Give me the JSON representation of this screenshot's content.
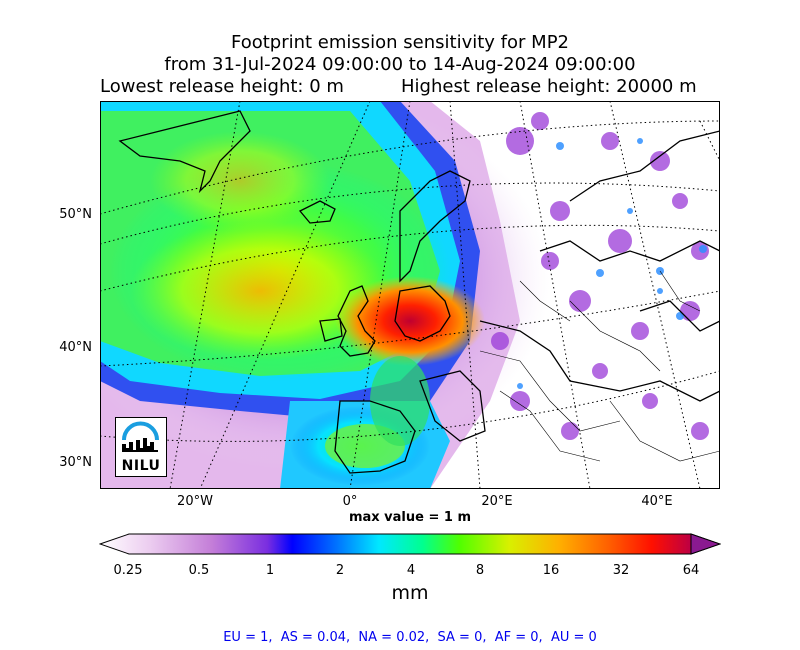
{
  "title": {
    "line1": "Footprint emission sensitivity for MP2",
    "line2": "from 31-Jul-2024 09:00:00 to 14-Aug-2024 09:00:00",
    "lowest": "Lowest release height: 0 m",
    "highest": "Highest release height: 20000 m"
  },
  "map": {
    "lat_labels": [
      "50°N",
      "40°N",
      "30°N"
    ],
    "lon_labels": [
      "20°W",
      "0°",
      "20°E",
      "40°E"
    ],
    "max_value": "max value = 1 m",
    "logo_text": "NILU",
    "colormap": [
      "#fbeefb",
      "#e7b8ec",
      "#c77ddc",
      "#9333d6",
      "#0000ff",
      "#0080ff",
      "#00e8ff",
      "#00ff90",
      "#50ff00",
      "#c8ff00",
      "#ffd000",
      "#ff8000",
      "#ff1000",
      "#c00030",
      "#800060"
    ]
  },
  "colorbar": {
    "ticks": [
      "0.25",
      "0.5",
      "1",
      "2",
      "4",
      "8",
      "16",
      "32",
      "64"
    ],
    "unit": "mm"
  },
  "stats": "EU = 1,  AS = 0.04,  NA = 0.02,  SA = 0,  AF = 0,  AU = 0"
}
